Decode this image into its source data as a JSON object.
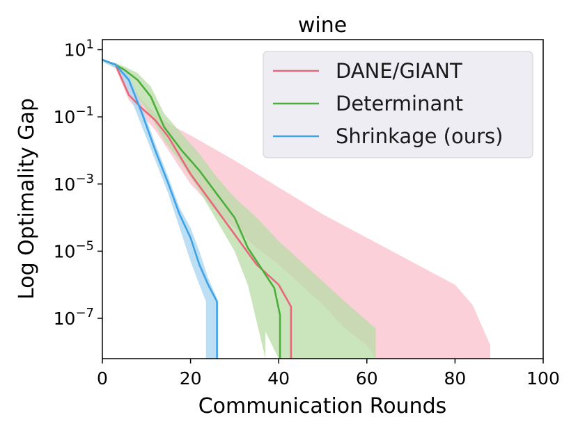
{
  "chart_data": {
    "type": "line",
    "title": "wine",
    "xlabel": "Communication Rounds",
    "ylabel": "Log Optimality Gap",
    "xlim": [
      0,
      100
    ],
    "ylim_log10": [
      -8.2,
      1.3
    ],
    "y_scale": "log",
    "x_ticks": [
      "0",
      "20",
      "40",
      "60",
      "80",
      "100"
    ],
    "y_ticks": [
      {
        "base": "10",
        "exp": "1",
        "value": 1
      },
      {
        "base": "10",
        "exp": "−1",
        "value": -1
      },
      {
        "base": "10",
        "exp": "−3",
        "value": -3
      },
      {
        "base": "10",
        "exp": "−5",
        "value": -5
      },
      {
        "base": "10",
        "exp": "−7",
        "value": -7
      }
    ],
    "legend_position": "top-right",
    "grid": false,
    "series": [
      {
        "name": "DANE/GIANT",
        "color": "#e8677b",
        "band_color": "#fbc8d2",
        "x": [
          0,
          3,
          6,
          9,
          12,
          15,
          20,
          25,
          30,
          35,
          40,
          42.8,
          42.8
        ],
        "log10_y": [
          0.7,
          0.55,
          -0.35,
          -0.75,
          -1.1,
          -1.6,
          -2.7,
          -3.6,
          -4.5,
          -5.4,
          -6.0,
          -6.65,
          -8.2
        ],
        "band_x": [
          0,
          3,
          6,
          9,
          12,
          15,
          20,
          30,
          40,
          50,
          60,
          70,
          80,
          84,
          88,
          88,
          62,
          60,
          55,
          50,
          45,
          40,
          35,
          30,
          25,
          20,
          15,
          12,
          9,
          6,
          3,
          0
        ],
        "band_upper": [
          0.7,
          0.6,
          0.1,
          -0.5,
          -0.9,
          -1.2,
          -1.55,
          -2.3,
          -3.1,
          -3.9,
          -4.6,
          -5.3,
          -6.0,
          -6.6,
          -7.8,
          -8.2,
          -8.2,
          -7.8,
          -7.3,
          -6.6,
          -6.0,
          -5.4,
          -4.9,
          -4.3,
          -3.7,
          -3.0,
          -2.0,
          -1.4,
          -0.95,
          -0.5,
          0.45,
          0.65
        ],
        "band_lower_note": "lower edge follows Determinant band"
      },
      {
        "name": "Determinant",
        "color": "#4cae3a",
        "band_color": "#b8dca5",
        "x": [
          0,
          3,
          5,
          8,
          11,
          14,
          18,
          22,
          26,
          30,
          33,
          36,
          39,
          40.3,
          40.3
        ],
        "log10_y": [
          0.7,
          0.55,
          0.4,
          0.1,
          -0.4,
          -1.3,
          -2.0,
          -2.6,
          -3.3,
          -4.0,
          -4.9,
          -5.5,
          -6.1,
          -6.9,
          -8.2
        ],
        "band_x": [
          0,
          3,
          5,
          8,
          11,
          14,
          18,
          22,
          26,
          30,
          35,
          40,
          45,
          50,
          55,
          62,
          62,
          40,
          37,
          37,
          33,
          30,
          26,
          22,
          18,
          14,
          11,
          8,
          5,
          3,
          0
        ],
        "band_upper": [
          0.7,
          0.6,
          0.5,
          0.3,
          -0.1,
          -0.9,
          -1.5,
          -2.1,
          -2.8,
          -3.4,
          -4.0,
          -4.7,
          -5.3,
          -5.9,
          -6.5,
          -7.3,
          -8.2,
          -8.2,
          -7.4,
          -8.2,
          -6.0,
          -5.0,
          -4.1,
          -3.2,
          -2.4,
          -1.7,
          -1.0,
          -0.4,
          0.15,
          0.45,
          0.65
        ]
      },
      {
        "name": "Shrinkage (ours)",
        "color": "#3fa2e6",
        "band_color": "#b2d9f2",
        "x": [
          0,
          3,
          6,
          9,
          12,
          15,
          17.5,
          20,
          22,
          24,
          26,
          26
        ],
        "log10_y": [
          0.7,
          0.55,
          0.1,
          -0.9,
          -2.0,
          -3.0,
          -3.9,
          -4.6,
          -5.4,
          -6.0,
          -6.5,
          -8.2
        ],
        "band_x": [
          0,
          3,
          6,
          9,
          12,
          15,
          17.5,
          20,
          22,
          24,
          26,
          26,
          23.5,
          23.5,
          22,
          20,
          17.5,
          15,
          12,
          9,
          6,
          3,
          0
        ],
        "band_upper": [
          0.7,
          0.6,
          0.25,
          -0.7,
          -1.8,
          -2.8,
          -3.7,
          -4.3,
          -5.0,
          -5.8,
          -6.4,
          -8.2,
          -8.2,
          -6.5,
          -6.0,
          -5.3,
          -4.3,
          -3.3,
          -2.3,
          -1.3,
          -0.3,
          0.45,
          0.65
        ]
      }
    ]
  }
}
